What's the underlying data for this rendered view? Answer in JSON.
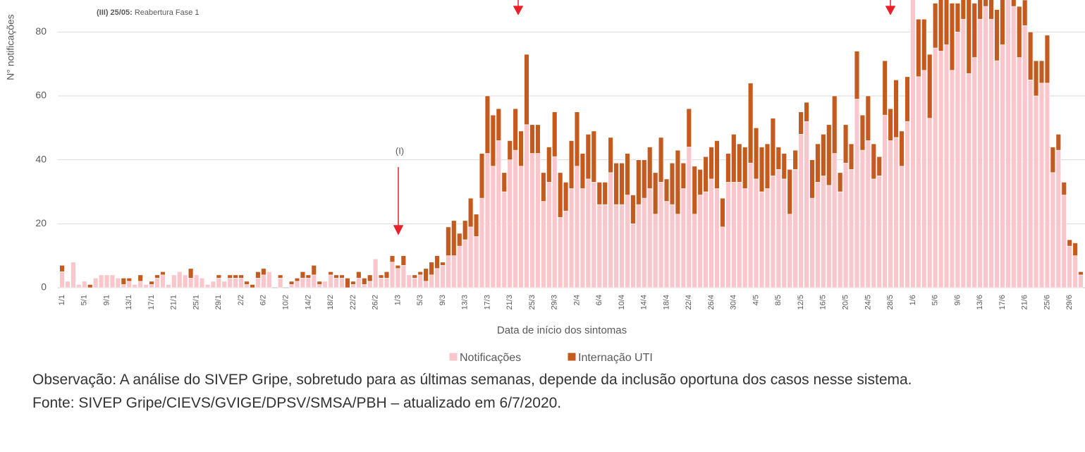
{
  "chart_data": {
    "type": "bar",
    "stacked": true,
    "y_label": "N° notificações",
    "x_label": "Data de início dos sintomas",
    "annotations": {
      "reopening_tag": "(III) 25/05:",
      "reopening_text": "Reabertura Fase 1",
      "marker_one": "(I)"
    },
    "categories": [
      "1/1",
      null,
      null,
      null,
      "5/1",
      null,
      null,
      null,
      "9/1",
      null,
      null,
      null,
      "13/1",
      null,
      null,
      null,
      "17/1",
      null,
      null,
      null,
      "21/1",
      null,
      null,
      null,
      "25/1",
      null,
      null,
      null,
      "29/1",
      null,
      null,
      null,
      "2/2",
      null,
      null,
      null,
      "6/2",
      null,
      null,
      null,
      "10/2",
      null,
      null,
      null,
      "14/2",
      null,
      null,
      null,
      "18/2",
      null,
      null,
      null,
      "22/2",
      null,
      null,
      null,
      "26/2",
      null,
      null,
      null,
      "1/3",
      null,
      null,
      null,
      "5/3",
      null,
      null,
      null,
      "9/3",
      null,
      null,
      null,
      "13/3",
      null,
      null,
      null,
      "17/3",
      null,
      null,
      null,
      "21/3",
      null,
      null,
      null,
      "25/3",
      null,
      null,
      null,
      "29/3",
      null,
      null,
      null,
      "2/4",
      null,
      null,
      null,
      "6/4",
      null,
      null,
      null,
      "10/4",
      null,
      null,
      null,
      "14/4",
      null,
      null,
      null,
      "18/4",
      null,
      null,
      null,
      "22/4",
      null,
      null,
      null,
      "26/4",
      null,
      null,
      null,
      "30/4",
      null,
      null,
      null,
      "4/5",
      null,
      null,
      null,
      "8/5",
      null,
      null,
      null,
      "12/5",
      null,
      null,
      null,
      "16/5",
      null,
      null,
      null,
      "20/5",
      null,
      null,
      null,
      "24/5",
      null,
      null,
      null,
      "28/5",
      null,
      null,
      null,
      "1/6",
      null,
      null,
      null,
      "5/6",
      null,
      null,
      null,
      "9/6",
      null,
      null,
      null,
      "13/6",
      null,
      null,
      null,
      "17/6",
      null,
      null,
      null,
      "21/6",
      null,
      null,
      null,
      "25/6",
      null,
      null,
      null,
      "29/6",
      null,
      null
    ],
    "series": [
      {
        "name": "Notificações",
        "color": "#f8c6cb",
        "values": [
          5,
          2,
          8,
          1,
          2,
          0,
          3,
          4,
          4,
          4,
          3,
          1,
          2,
          1,
          2,
          1,
          1,
          3,
          4,
          1,
          4,
          5,
          4,
          3,
          4,
          3,
          1,
          2,
          3,
          2,
          3,
          3,
          3,
          1,
          0,
          3,
          4,
          5,
          0,
          3,
          0,
          1,
          2,
          3,
          3,
          4,
          1,
          2,
          4,
          3,
          3,
          0,
          1,
          3,
          1,
          2,
          9,
          3,
          3,
          8,
          6,
          7,
          4,
          3,
          4,
          2,
          4,
          6,
          7,
          10,
          10,
          13,
          15,
          19,
          16,
          28,
          42,
          38,
          46,
          30,
          40,
          43,
          38,
          51,
          42,
          42,
          27,
          33,
          41,
          22,
          24,
          31,
          38,
          31,
          34,
          33,
          26,
          26,
          36,
          26,
          26,
          29,
          20,
          26,
          28,
          31,
          23,
          33,
          27,
          26,
          23,
          31,
          44,
          23,
          29,
          30,
          34,
          31,
          19,
          33,
          33,
          33,
          31,
          39,
          34,
          30,
          31,
          35,
          37,
          34,
          23,
          37,
          48,
          52,
          28,
          33,
          35,
          32,
          42,
          30,
          39,
          37,
          59,
          43,
          46,
          34,
          35,
          54,
          46,
          47,
          38,
          52,
          95,
          66,
          68,
          53,
          75,
          74,
          76,
          68,
          80,
          84,
          67,
          72,
          84,
          88,
          84,
          71,
          76,
          95,
          88,
          72,
          82,
          65,
          60,
          64,
          64,
          36,
          43,
          29,
          13,
          10,
          4
        ]
      },
      {
        "name": "Internação UTI",
        "color": "#c55a1e",
        "values": [
          2,
          0,
          0,
          0,
          0,
          1,
          0,
          0,
          0,
          0,
          0,
          2,
          1,
          0,
          2,
          0,
          1,
          1,
          1,
          0,
          0,
          0,
          0,
          3,
          0,
          0,
          0,
          0,
          1,
          0,
          1,
          1,
          1,
          1,
          1,
          2,
          2,
          0,
          0,
          1,
          0,
          1,
          1,
          2,
          1,
          3,
          1,
          0,
          1,
          1,
          1,
          3,
          1,
          2,
          2,
          2,
          0,
          1,
          2,
          2,
          1,
          3,
          0,
          1,
          1,
          4,
          4,
          4,
          1,
          9,
          11,
          4,
          6,
          9,
          7,
          14,
          18,
          16,
          10,
          6,
          6,
          13,
          11,
          22,
          9,
          9,
          9,
          11,
          14,
          14,
          9,
          15,
          17,
          11,
          14,
          16,
          7,
          7,
          11,
          13,
          13,
          13,
          9,
          14,
          12,
          13,
          13,
          14,
          7,
          13,
          20,
          8,
          12,
          15,
          8,
          11,
          10,
          15,
          9,
          9,
          15,
          12,
          13,
          25,
          16,
          14,
          14,
          18,
          7,
          8,
          14,
          6,
          7,
          6,
          12,
          12,
          13,
          19,
          18,
          6,
          12,
          8,
          15,
          11,
          14,
          11,
          6,
          17,
          10,
          18,
          11,
          14,
          5,
          18,
          16,
          20,
          14,
          20,
          18,
          21,
          9,
          10,
          24,
          17,
          10,
          8,
          13,
          16,
          16,
          4,
          6,
          16,
          8,
          15,
          11,
          7,
          15,
          8,
          5,
          4,
          2,
          4,
          1
        ]
      }
    ],
    "ylim": [
      0,
      90
    ],
    "yticks": [
      0,
      20,
      40,
      60,
      80
    ],
    "grid": true,
    "legend": "bottom"
  },
  "notes": [
    "Observação: A análise do SIVEP Gripe, sobretudo para as últimas semanas, depende da inclusão oportuna dos casos nesse sistema.",
    "Fonte: SIVEP Gripe/CIEVS/GVIGE/DPSV/SMSA/PBH – atualizado em 6/7/2020."
  ]
}
